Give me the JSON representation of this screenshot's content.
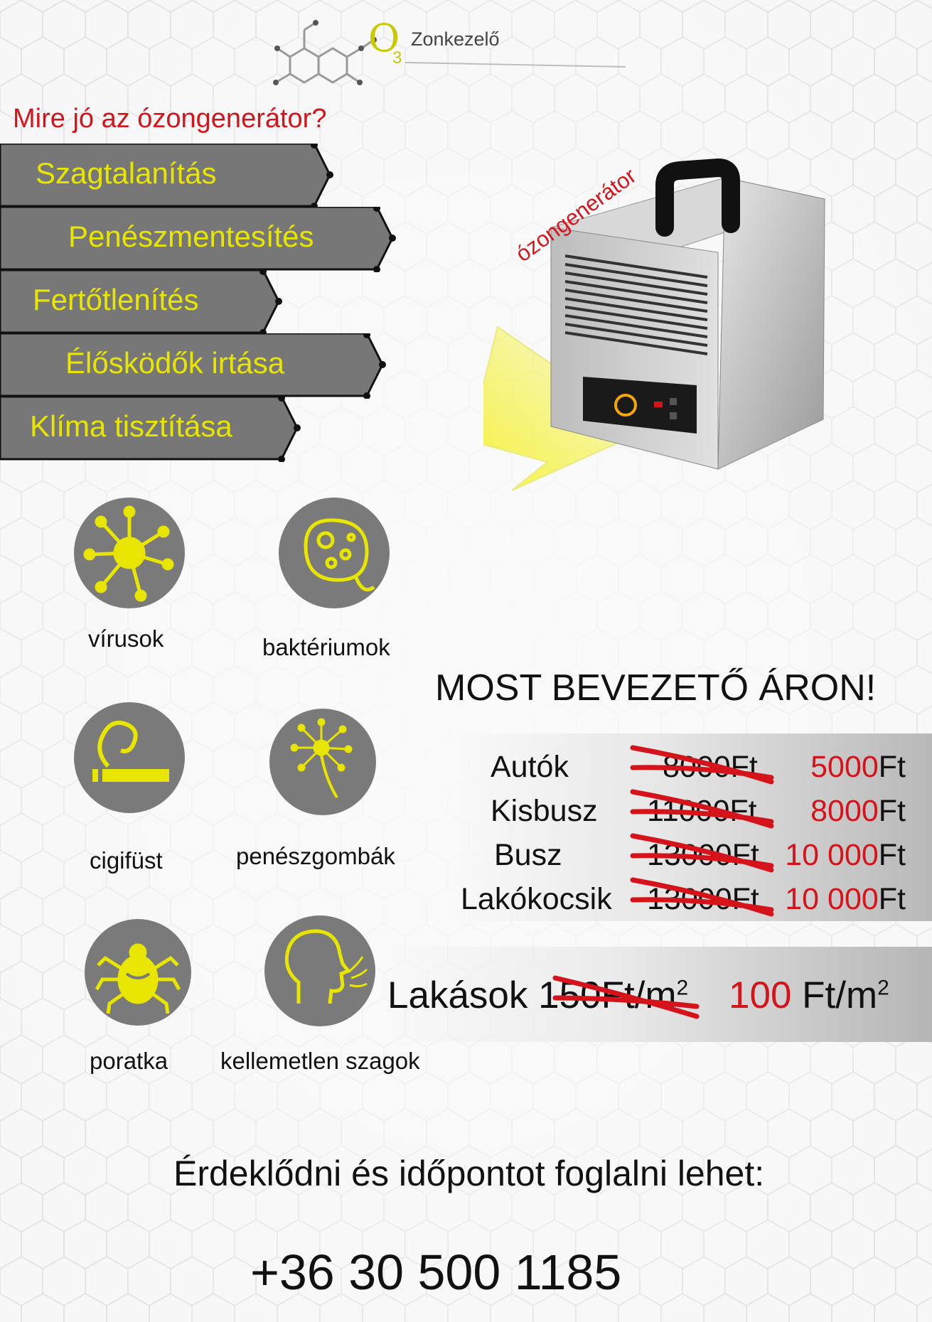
{
  "logo": {
    "letter": "O",
    "subscript": "3",
    "name": "Zonkezelő"
  },
  "question": "Mire jó az ózongenerátor?",
  "services": [
    "Szagtalanítás",
    "Penészmentesítés",
    "Fertőtlenítés",
    "Élősködők irtása",
    "Klíma tisztítása"
  ],
  "generator_label": "ózongenerátor",
  "threats": [
    {
      "label": "vírusok",
      "icon": "virus-icon"
    },
    {
      "label": "baktériumok",
      "icon": "bacteria-icon"
    },
    {
      "label": "cigifüst",
      "icon": "cigarette-smoke-icon"
    },
    {
      "label": "penészgombák",
      "icon": "mold-spore-icon"
    },
    {
      "label": "poratka",
      "icon": "dust-mite-icon"
    },
    {
      "label": "kellemetlen szagok",
      "icon": "bad-odor-icon"
    }
  ],
  "promo_title": "MOST BEVEZETŐ ÁRON!",
  "prices": [
    {
      "name": "Autók",
      "old": "8000Ft",
      "new": "5000",
      "currency": "Ft"
    },
    {
      "name": "Kisbusz",
      "old": "11000Ft",
      "new": "8000",
      "currency": "Ft"
    },
    {
      "name": "Busz",
      "old": "13000Ft",
      "new": "10 000",
      "currency": "Ft"
    },
    {
      "name": "Lakókocsik",
      "old": "13000Ft",
      "new": "10 000",
      "currency": "Ft"
    }
  ],
  "flats": {
    "name": "Lakások",
    "old": "150Ft/m",
    "old_exp": "2",
    "new_value": "100",
    "new_unit": " Ft/m",
    "new_exp": "2"
  },
  "contact_text": "Érdeklődni és időpontot foglalni lehet:",
  "phone": "+36 30 500 1185",
  "colors": {
    "accent_yellow": "#e8e600",
    "banner_grey": "#777777",
    "price_red": "#d4141a",
    "icon_grey": "#7a7a7a"
  }
}
